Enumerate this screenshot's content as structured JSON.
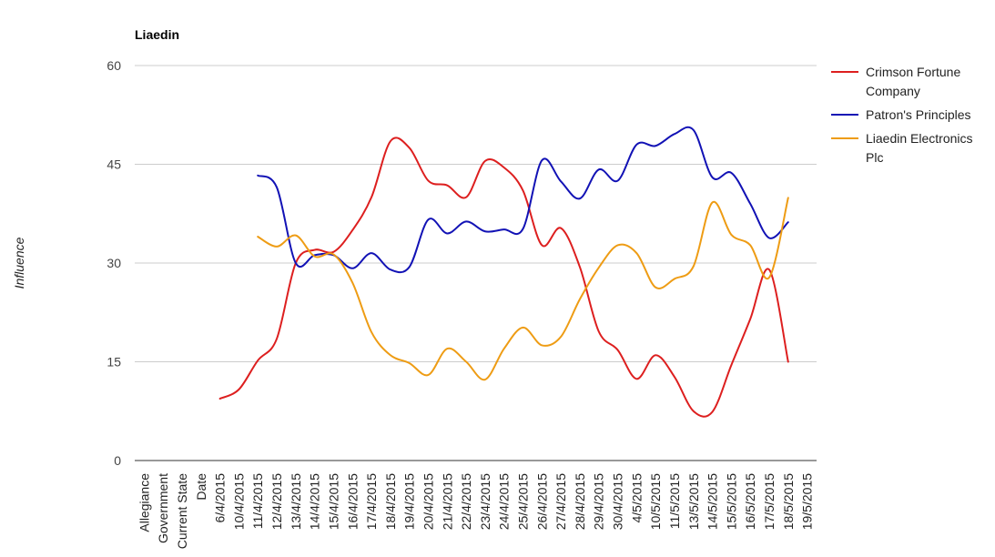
{
  "chart_data": {
    "type": "line",
    "title": "Liaedin",
    "xlabel": "",
    "ylabel": "Influence",
    "ylim": [
      0,
      60
    ],
    "yticks": [
      "0",
      "15",
      "30",
      "45",
      "60"
    ],
    "grid": true,
    "legend_position": "right",
    "categories": [
      "Allegiance",
      "Government",
      "Current State",
      "Date",
      "6/4/2015",
      "10/4/2015",
      "11/4/2015",
      "12/4/2015",
      "13/4/2015",
      "14/4/2015",
      "15/4/2015",
      "16/4/2015",
      "17/4/2015",
      "18/4/2015",
      "19/4/2015",
      "20/4/2015",
      "21/4/2015",
      "22/4/2015",
      "23/4/2015",
      "24/4/2015",
      "25/4/2015",
      "26/4/2015",
      "27/4/2015",
      "28/4/2015",
      "29/4/2015",
      "30/4/2015",
      "4/5/2015",
      "10/5/2015",
      "11/5/2015",
      "13/5/2015",
      "14/5/2015",
      "15/5/2015",
      "16/5/2015",
      "17/5/2015",
      "18/5/2015",
      "19/5/2015"
    ],
    "series": [
      {
        "name": "Crimson Fortune Company",
        "color": "#dd1f1f",
        "values": [
          null,
          null,
          null,
          null,
          9.4,
          10.8,
          15.2,
          18.5,
          30.0,
          32.0,
          31.7,
          35.0,
          40.0,
          48.5,
          47.5,
          42.5,
          41.8,
          40.0,
          45.5,
          44.5,
          41.0,
          32.7,
          35.3,
          29.4,
          19.6,
          16.8,
          12.4,
          16.0,
          12.7,
          7.5,
          7.4,
          14.5,
          21.5,
          29.0,
          15.0,
          null
        ]
      },
      {
        "name": "Patron's Principles",
        "color": "#1212b5",
        "values": [
          null,
          null,
          null,
          null,
          null,
          null,
          43.3,
          41.5,
          30.0,
          31.2,
          31.2,
          29.2,
          31.5,
          29.0,
          29.4,
          36.6,
          34.5,
          36.3,
          34.8,
          35.1,
          35.2,
          45.6,
          42.4,
          39.8,
          44.2,
          42.5,
          48.0,
          47.8,
          49.6,
          50.2,
          43.0,
          43.7,
          39.0,
          33.8,
          36.2,
          null
        ]
      },
      {
        "name": "Liaedin Electronics Plc",
        "color": "#ee9c14",
        "values": [
          null,
          null,
          null,
          null,
          null,
          null,
          34.0,
          32.5,
          34.2,
          31.0,
          31.3,
          27.0,
          19.5,
          16.0,
          14.8,
          13.0,
          17.0,
          15.0,
          12.3,
          17.0,
          20.2,
          17.5,
          18.8,
          24.5,
          29.3,
          32.7,
          31.5,
          26.3,
          27.6,
          29.5,
          39.2,
          34.3,
          32.7,
          27.8,
          39.9,
          null
        ]
      }
    ]
  }
}
